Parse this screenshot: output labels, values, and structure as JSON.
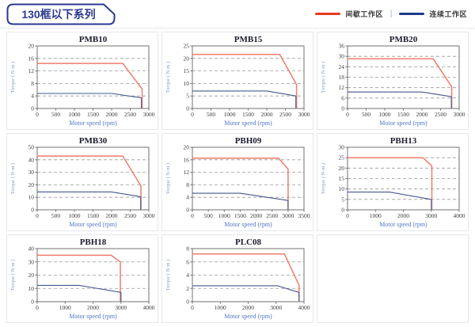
{
  "header": {
    "title": "130框以下系列",
    "legend": {
      "intermittent_label": "间歇工作区",
      "continuous_label": "连续工作区",
      "separator": "|"
    }
  },
  "axis": {
    "xlabel": "Motor speed (rpm)",
    "ylabel": "Torque ( N·m )"
  },
  "colors": {
    "accent_navy": "#2b3990",
    "legend_red": "#e8391d",
    "legend_navy": "#1e3a8a",
    "chart_red": "#ee7d6c",
    "chart_blue": "#46578f",
    "grid_line": "#9a9a9a",
    "frame": "#707070",
    "cell_border": "#e4e7ee"
  },
  "chart_data": [
    {
      "type": "line",
      "title": "PMB10",
      "xlabel": "Motor speed (rpm)",
      "ylabel": "Torque ( N·m )",
      "xlim": [
        0,
        3000
      ],
      "xstep": 500,
      "ylim": [
        0,
        20
      ],
      "ystep": 4,
      "grid": "horizontal-dashed",
      "legend_position": "none",
      "series": [
        {
          "name": "间歇工作区",
          "color_key": "chart_red",
          "points": [
            [
              0,
              14.4
            ],
            [
              2300,
              14.4
            ],
            [
              2820,
              6.2
            ],
            [
              2820,
              0
            ]
          ]
        },
        {
          "name": "连续工作区",
          "color_key": "chart_blue",
          "points": [
            [
              0,
              4.8
            ],
            [
              2000,
              4.8
            ],
            [
              2800,
              3.4
            ],
            [
              2800,
              0
            ]
          ]
        }
      ]
    },
    {
      "type": "line",
      "title": "PMB15",
      "xlabel": "Motor speed (rpm)",
      "ylabel": "Torque ( N·m )",
      "xlim": [
        0,
        3000
      ],
      "xstep": 500,
      "ylim": [
        0,
        25
      ],
      "ystep": 5,
      "grid": "horizontal-dashed",
      "legend_position": "none",
      "series": [
        {
          "name": "间歇工作区",
          "color_key": "chart_red",
          "points": [
            [
              0,
              21.6
            ],
            [
              2350,
              21.6
            ],
            [
              2800,
              9.6
            ],
            [
              2800,
              0
            ]
          ]
        },
        {
          "name": "连续工作区",
          "color_key": "chart_blue",
          "points": [
            [
              0,
              7
            ],
            [
              2000,
              7
            ],
            [
              2780,
              5
            ],
            [
              2780,
              0
            ]
          ]
        }
      ]
    },
    {
      "type": "line",
      "title": "PMB20",
      "xlabel": "Motor speed (rpm)",
      "ylabel": "Torque ( N·m )",
      "xlim": [
        0,
        3000
      ],
      "xstep": 500,
      "ylim": [
        0,
        36
      ],
      "ystep": 6,
      "grid": "horizontal-dashed",
      "legend_position": "none",
      "series": [
        {
          "name": "间歇工作区",
          "color_key": "chart_red",
          "points": [
            [
              0,
              28.6
            ],
            [
              2300,
              28.6
            ],
            [
              2800,
              12.5
            ],
            [
              2800,
              0
            ]
          ]
        },
        {
          "name": "连续工作区",
          "color_key": "chart_blue",
          "points": [
            [
              0,
              9.5
            ],
            [
              2000,
              9.5
            ],
            [
              2790,
              6.8
            ],
            [
              2790,
              0
            ]
          ]
        }
      ]
    },
    {
      "type": "line",
      "title": "PMB30",
      "xlabel": "Motor speed (rpm)",
      "ylabel": "Torque ( N·m )",
      "xlim": [
        0,
        3000
      ],
      "xstep": 500,
      "ylim": [
        0,
        50
      ],
      "ystep": 10,
      "grid": "horizontal-dashed",
      "legend_position": "none",
      "series": [
        {
          "name": "间歇工作区",
          "color_key": "chart_red",
          "points": [
            [
              0,
              43
            ],
            [
              2300,
              43
            ],
            [
              2790,
              19
            ],
            [
              2790,
              0
            ]
          ]
        },
        {
          "name": "连续工作区",
          "color_key": "chart_blue",
          "points": [
            [
              0,
              14.3
            ],
            [
              2000,
              14.3
            ],
            [
              2780,
              10.5
            ],
            [
              2780,
              0
            ]
          ]
        }
      ]
    },
    {
      "type": "line",
      "title": "PBH09",
      "xlabel": "Motor speed (rpm)",
      "ylabel": "Torque ( N·m )",
      "xlim": [
        0,
        3500
      ],
      "xstep": 500,
      "ylim": [
        0,
        20
      ],
      "ystep": 4,
      "grid": "horizontal-dashed",
      "legend_position": "none",
      "series": [
        {
          "name": "间歇工作区",
          "color_key": "chart_red",
          "points": [
            [
              0,
              16.5
            ],
            [
              2700,
              16.5
            ],
            [
              3000,
              13
            ],
            [
              3000,
              0
            ]
          ]
        },
        {
          "name": "连续工作区",
          "color_key": "chart_blue",
          "points": [
            [
              0,
              5.3
            ],
            [
              1500,
              5.3
            ],
            [
              3000,
              3
            ],
            [
              3000,
              0
            ]
          ]
        }
      ]
    },
    {
      "type": "line",
      "title": "PBH13",
      "xlabel": "Motor speed (rpm)",
      "ylabel": "Torque ( N·m )",
      "xlim": [
        0,
        4000
      ],
      "xstep": 1000,
      "ylim": [
        0,
        30
      ],
      "ystep": 5,
      "grid": "horizontal-dashed",
      "legend_position": "none",
      "series": [
        {
          "name": "间歇工作区",
          "color_key": "chart_red",
          "points": [
            [
              0,
              25
            ],
            [
              2700,
              25
            ],
            [
              3020,
              21
            ],
            [
              3020,
              0
            ]
          ]
        },
        {
          "name": "连续工作区",
          "color_key": "chart_blue",
          "points": [
            [
              0,
              8.5
            ],
            [
              1500,
              8.5
            ],
            [
              3000,
              5
            ],
            [
              3000,
              0
            ]
          ]
        }
      ]
    },
    {
      "type": "line",
      "title": "PBH18",
      "xlabel": "Motor speed (rpm)",
      "ylabel": "Torque ( N·m )",
      "xlim": [
        0,
        4000
      ],
      "xstep": 1000,
      "ylim": [
        0,
        40
      ],
      "ystep": 10,
      "grid": "horizontal-dashed",
      "legend_position": "none",
      "series": [
        {
          "name": "间歇工作区",
          "color_key": "chart_red",
          "points": [
            [
              0,
              35
            ],
            [
              2650,
              35
            ],
            [
              2980,
              30
            ],
            [
              2980,
              0
            ]
          ]
        },
        {
          "name": "连续工作区",
          "color_key": "chart_blue",
          "points": [
            [
              0,
              12.3
            ],
            [
              1500,
              12.3
            ],
            [
              3000,
              7
            ],
            [
              3000,
              0
            ]
          ]
        }
      ]
    },
    {
      "type": "line",
      "title": "PLC08",
      "xlabel": "Motor speed (rpm)",
      "ylabel": "Torque ( N·m )",
      "xlim": [
        0,
        4000
      ],
      "xstep": 1000,
      "ylim": [
        0,
        8
      ],
      "ystep": 2,
      "grid": "horizontal-dashed",
      "legend_position": "none",
      "series": [
        {
          "name": "间歇工作区",
          "color_key": "chart_red",
          "points": [
            [
              0,
              7.2
            ],
            [
              3300,
              7.2
            ],
            [
              3820,
              2.5
            ],
            [
              3820,
              0
            ]
          ]
        },
        {
          "name": "连续工作区",
          "color_key": "chart_blue",
          "points": [
            [
              0,
              2.4
            ],
            [
              3050,
              2.4
            ],
            [
              3820,
              1.4
            ],
            [
              3820,
              0
            ]
          ]
        }
      ]
    }
  ]
}
